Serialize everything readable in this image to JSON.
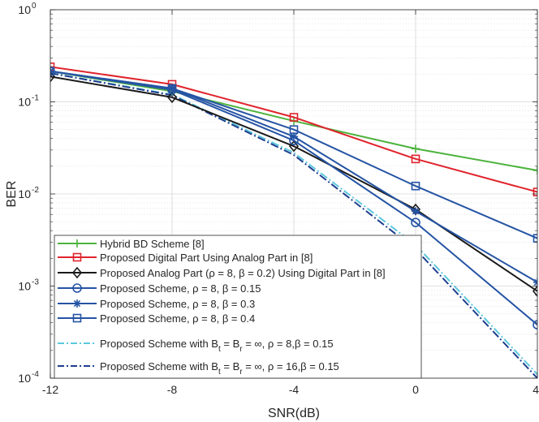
{
  "chart_data": {
    "type": "line",
    "xlabel": "SNR(dB)",
    "ylabel": "BER",
    "xlim": [
      -12,
      4
    ],
    "ylim": [
      0.0001,
      1
    ],
    "yscale": "log",
    "grid": true,
    "legend_position": "bottom-left",
    "x_ticks": [
      {
        "value": -12,
        "label": "-12"
      },
      {
        "value": -8,
        "label": "-8"
      },
      {
        "value": -4,
        "label": "-4"
      },
      {
        "value": 0,
        "label": "0"
      },
      {
        "value": 4,
        "label": "4"
      }
    ],
    "y_ticks": [
      {
        "value": 1,
        "base": "10",
        "exp": "0"
      },
      {
        "value": 0.1,
        "base": "10",
        "exp": "-1"
      },
      {
        "value": 0.01,
        "base": "10",
        "exp": "-2"
      },
      {
        "value": 0.001,
        "base": "10",
        "exp": "-3"
      },
      {
        "value": 0.0001,
        "base": "10",
        "exp": "-4"
      }
    ],
    "x": [
      -12,
      -8,
      -4,
      0,
      4
    ],
    "series": [
      {
        "name": "Hybrid BD Scheme [8]",
        "color": "#4db33d",
        "marker": "plus",
        "dash": "solid",
        "values": [
          0.215,
          0.13,
          0.062,
          0.031,
          0.018
        ]
      },
      {
        "name": "Proposed Digital Part Using Analog Part in [8]",
        "color": "#e0242c",
        "marker": "square",
        "dash": "solid",
        "values": [
          0.24,
          0.155,
          0.068,
          0.024,
          0.0105
        ]
      },
      {
        "name": "Proposed Analog Part (ρ = 8, β = 0.2) Using Digital Part in [8]",
        "color": "#1a1a1a",
        "marker": "diamond",
        "dash": "solid",
        "values": [
          0.188,
          0.112,
          0.033,
          0.0068,
          0.00088
        ]
      },
      {
        "name": "Proposed Scheme, ρ = 8, β = 0.15",
        "color": "#2554a4",
        "marker": "circle",
        "dash": "solid",
        "values": [
          0.215,
          0.135,
          0.038,
          0.0049,
          0.00038
        ]
      },
      {
        "name": "Proposed Scheme, ρ = 8, β = 0.3",
        "color": "#2554a4",
        "marker": "asterisk",
        "dash": "solid",
        "values": [
          0.215,
          0.14,
          0.042,
          0.0065,
          0.0011
        ]
      },
      {
        "name": "Proposed Scheme, ρ = 8, β = 0.4",
        "color": "#2554a4",
        "marker": "square",
        "dash": "solid",
        "values": [
          0.215,
          0.14,
          0.05,
          0.0122,
          0.0033
        ]
      },
      {
        "name": "Proposed Scheme with B_t = B_r = ∞, ρ = 8,β = 0.15",
        "color": "#5bc8dc",
        "marker": "none",
        "dash": "dashdot",
        "values": [
          0.205,
          0.12,
          0.028,
          0.0028,
          0.00011
        ]
      },
      {
        "name": "Proposed Scheme with B_t = B_r = ∞, ρ = 16,β = 0.15",
        "color": "#1f3f8f",
        "marker": "none",
        "dash": "dashdot",
        "values": [
          0.205,
          0.118,
          0.0265,
          0.0025,
          0.0001
        ]
      }
    ],
    "legend": {
      "labels": [
        "Hybrid BD Scheme [8]",
        "Proposed Digital Part Using Analog Part in [8]",
        "Proposed Analog Part (ρ = 8, β = 0.2) Using Digital Part in [8]",
        "Proposed Scheme, ρ = 8, β = 0.15",
        "Proposed Scheme, ρ = 8, β = 0.3",
        "Proposed Scheme, ρ = 8, β = 0.4"
      ],
      "special": [
        {
          "pre": "Proposed Scheme with B",
          "sub1": "t",
          "mid": " = B",
          "sub2": "r",
          "post": " = ∞, ρ = 8,β = 0.15"
        },
        {
          "pre": "Proposed Scheme with B",
          "sub1": "t",
          "mid": " = B",
          "sub2": "r",
          "post": " = ∞, ρ = 16,β = 0.15"
        }
      ]
    }
  }
}
